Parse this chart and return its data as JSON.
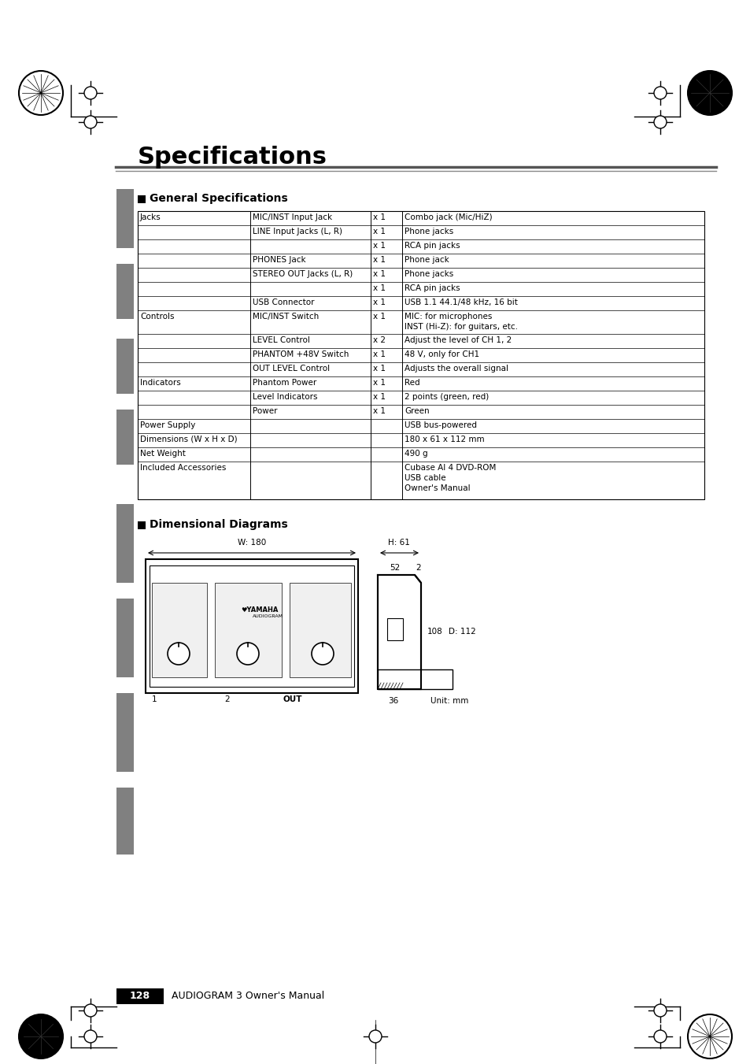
{
  "title": "Specifications",
  "section1": "General Specifications",
  "section2": "Dimensional Diagrams",
  "bg_color": "#ffffff",
  "table_rows": [
    [
      "Jacks",
      "MIC/INST Input Jack",
      "x 1",
      "Combo jack (Mic/HiZ)"
    ],
    [
      "",
      "LINE Input Jacks (L, R)",
      "x 1",
      "Phone jacks"
    ],
    [
      "",
      "",
      "x 1",
      "RCA pin jacks"
    ],
    [
      "",
      "PHONES Jack",
      "x 1",
      "Phone jack"
    ],
    [
      "",
      "STEREO OUT Jacks (L, R)",
      "x 1",
      "Phone jacks"
    ],
    [
      "",
      "",
      "x 1",
      "RCA pin jacks"
    ],
    [
      "",
      "USB Connector",
      "x 1",
      "USB 1.1 44.1/48 kHz, 16 bit"
    ],
    [
      "Controls",
      "MIC/INST Switch",
      "x 1",
      "MIC: for microphones\nINST (Hi-Z): for guitars, etc."
    ],
    [
      "",
      "LEVEL Control",
      "x 2",
      "Adjust the level of CH 1, 2"
    ],
    [
      "",
      "PHANTOM +48V Switch",
      "x 1",
      "48 V, only for CH1"
    ],
    [
      "",
      "OUT LEVEL Control",
      "x 1",
      "Adjusts the overall signal"
    ],
    [
      "Indicators",
      "Phantom Power",
      "x 1",
      "Red"
    ],
    [
      "",
      "Level Indicators",
      "x 1",
      "2 points (green, red)"
    ],
    [
      "",
      "Power",
      "x 1",
      "Green"
    ],
    [
      "Power Supply",
      "",
      "",
      "USB bus-powered"
    ],
    [
      "Dimensions (W x H x D)",
      "",
      "",
      "180 x 61 x 112 mm"
    ],
    [
      "Net Weight",
      "",
      "",
      "490 g"
    ],
    [
      "Included Accessories",
      "",
      "",
      "Cubase AI 4 DVD-ROM\nUSB cable\nOwner's Manual"
    ]
  ],
  "page_number": "128",
  "footer_text": "AUDIOGRAM 3 Owner's Manual",
  "dim_labels": {
    "W": "W: 180",
    "H": "H: 61",
    "top_52": "52",
    "top_2": "2",
    "side_108": "108",
    "D": "D: 112",
    "bottom_36": "36",
    "unit": "Unit: mm"
  },
  "sidebar_color": "#808080",
  "header_line_color": "#555555",
  "table_border_color": "#000000",
  "table_bg_color": "#ffffff",
  "section_marker_color": "#1a1a1a"
}
